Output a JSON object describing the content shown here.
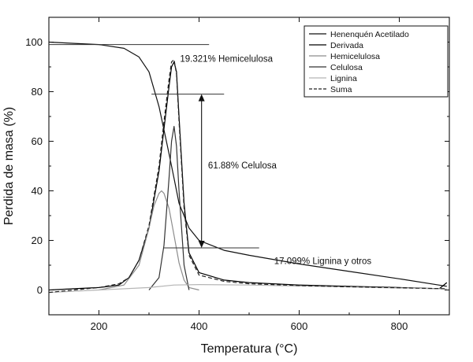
{
  "chart_data": {
    "type": "line",
    "xlabel": "Temperatura (°C)",
    "ylabel": "Perdida de masa (%)",
    "xlim": [
      100,
      900
    ],
    "ylim": [
      -10,
      110
    ],
    "x_ticks": [
      200,
      400,
      600,
      800
    ],
    "y_ticks": [
      0,
      20,
      40,
      60,
      80,
      100
    ],
    "x_tick_labels": [
      "200",
      "400",
      "600",
      "800"
    ],
    "y_tick_labels": [
      "0",
      "20",
      "40",
      "60",
      "80",
      "100"
    ],
    "grid": false,
    "legend_position": "top-right",
    "series": [
      {
        "name": "Henenquén Acetilado",
        "style": "solid",
        "color": "#111111",
        "x": [
          100,
          150,
          200,
          250,
          280,
          300,
          320,
          340,
          350,
          360,
          380,
          400,
          450,
          500,
          600,
          700,
          800,
          895
        ],
        "y": [
          100,
          99.5,
          99,
          97.5,
          94,
          88,
          74,
          55,
          45,
          35,
          25,
          20,
          16,
          14,
          10.5,
          7.5,
          4.5,
          1.5
        ]
      },
      {
        "name": "Derivada",
        "style": "solid",
        "color": "#000000",
        "x": [
          100,
          150,
          200,
          240,
          260,
          280,
          300,
          320,
          330,
          340,
          345,
          350,
          355,
          360,
          370,
          380,
          400,
          450,
          500,
          600,
          700,
          800,
          880,
          895
        ],
        "y": [
          0,
          0.5,
          1,
          2,
          5,
          12,
          25,
          48,
          65,
          82,
          90,
          92,
          88,
          70,
          35,
          15,
          7,
          4,
          3,
          2,
          1.5,
          1,
          0.5,
          3
        ]
      },
      {
        "name": "Hemicelulosa",
        "style": "solid",
        "color": "#8c8c8c",
        "x": [
          200,
          250,
          280,
          300,
          310,
          320,
          325,
          330,
          340,
          350,
          360,
          370,
          380,
          400
        ],
        "y": [
          0,
          2,
          10,
          25,
          34,
          39,
          40,
          39,
          33,
          22,
          11,
          4,
          1,
          0
        ]
      },
      {
        "name": "Celulosa",
        "style": "solid",
        "color": "#333333",
        "x": [
          300,
          320,
          330,
          340,
          345,
          350,
          355,
          360,
          370,
          380
        ],
        "y": [
          0,
          5,
          18,
          45,
          60,
          66,
          58,
          40,
          10,
          0
        ]
      },
      {
        "name": "Lignina",
        "style": "solid",
        "color": "#b5b5b5",
        "x": [
          100,
          200,
          300,
          350,
          400,
          500,
          600,
          700,
          800,
          895
        ],
        "y": [
          -1,
          0,
          1,
          2,
          2.2,
          2,
          1.6,
          1.2,
          0.8,
          0.4
        ]
      },
      {
        "name": "Suma",
        "style": "dashed",
        "color": "#222222",
        "x": [
          100,
          150,
          200,
          240,
          260,
          280,
          300,
          320,
          330,
          340,
          345,
          350,
          355,
          360,
          370,
          380,
          400,
          450,
          500,
          600,
          700,
          800,
          895
        ],
        "y": [
          -1,
          0,
          1,
          2.5,
          5,
          12,
          26,
          50,
          68,
          85,
          92,
          93,
          87,
          68,
          33,
          14,
          6,
          3.5,
          2.5,
          1.8,
          1.3,
          0.9,
          0.5
        ]
      }
    ],
    "reference_lines": [
      {
        "x1": 100,
        "x2": 420,
        "y": 99
      },
      {
        "x1": 305,
        "x2": 450,
        "y": 79
      },
      {
        "x1": 330,
        "x2": 520,
        "y": 17
      }
    ],
    "arrow": {
      "x": 405,
      "y_start": 79,
      "y_end": 17
    },
    "annotations": [
      {
        "text": "19.321% Hemicelulosa",
        "x": 362,
        "y": 92
      },
      {
        "text": "61.88% Celulosa",
        "x": 418,
        "y": 49
      },
      {
        "text": "17.099% Lignina y otros",
        "x": 550,
        "y": 10.5
      }
    ]
  }
}
